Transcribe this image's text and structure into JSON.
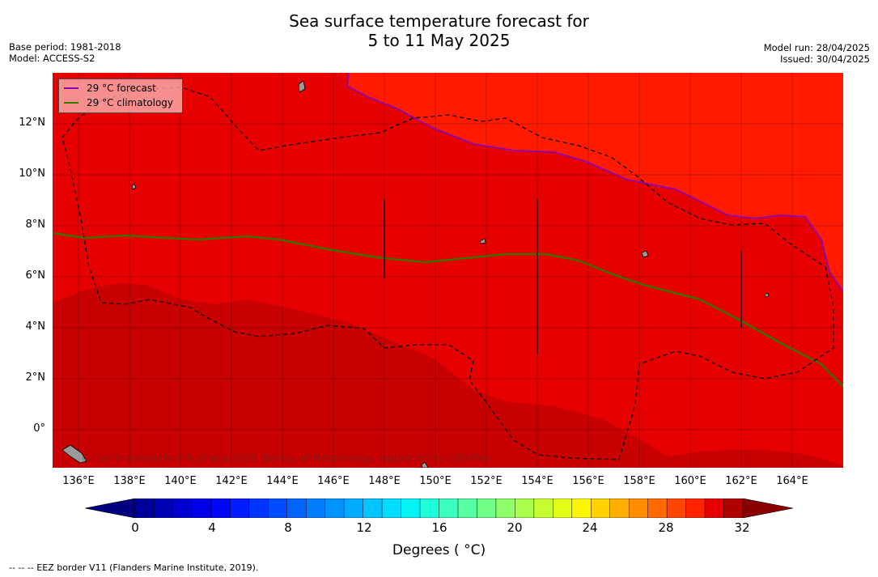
{
  "header": {
    "title_line1": "Sea surface temperature forecast for",
    "title_line2": "5 to 11 May 2025",
    "base_period": "Base period: 1981-2018",
    "model": "Model: ACCESS-S2",
    "model_run": "Model run: 28/04/2025",
    "issued": "Issued: 30/04/2025"
  },
  "map": {
    "lat_labels": [
      "12°N",
      "10°N",
      "8°N",
      "6°N",
      "4°N",
      "2°N",
      "0°"
    ],
    "lon_labels": [
      "136°E",
      "138°E",
      "140°E",
      "142°E",
      "144°E",
      "146°E",
      "148°E",
      "150°E",
      "152°E",
      "154°E",
      "156°E",
      "158°E",
      "160°E",
      "162°E",
      "164°E"
    ],
    "lon_range": [
      135,
      166
    ],
    "lat_range": [
      -1.5,
      14
    ],
    "grid": true,
    "colors": {
      "sst_27_28": "#ff1a00",
      "sst_28_29": "#e60000",
      "sst_29_30": "#c80000",
      "forecast_line": "#8b00b0",
      "climatology_line": "#2a7a00",
      "eez_line": "#000000"
    },
    "credit": "© Commonwealth of Australia 2025, Bureau of Meteorology, supported by COSPPac"
  },
  "legend": {
    "forecast_label": "29 °C  forecast",
    "climatology_label": "29 °C  climatology"
  },
  "colorbar": {
    "ticks": [
      "0",
      "4",
      "8",
      "12",
      "16",
      "20",
      "24",
      "28",
      "32"
    ],
    "label": "Degrees ( °C)",
    "min": 0,
    "max": 32,
    "step": 1,
    "colors": [
      "#00007f",
      "#00009a",
      "#0000b5",
      "#0000d0",
      "#0000eb",
      "#0004ff",
      "#001cff",
      "#0034ff",
      "#004cff",
      "#0064ff",
      "#007cff",
      "#0094ff",
      "#00acff",
      "#00c4ff",
      "#00dcff",
      "#02f4f5",
      "#1effd9",
      "#3affbd",
      "#56ffa1",
      "#72ff85",
      "#8eff69",
      "#aaff4d",
      "#c6ff31",
      "#e2ff15",
      "#fff500",
      "#ffd200",
      "#ffaf00",
      "#ff8c00",
      "#ff6900",
      "#ff4600",
      "#ff2300",
      "#e60000",
      "#b00000",
      "#8a0000"
    ]
  },
  "footer": {
    "eez_note": "--  --  -- EEZ border V11 (Flanders Marine Institute, 2019)."
  }
}
